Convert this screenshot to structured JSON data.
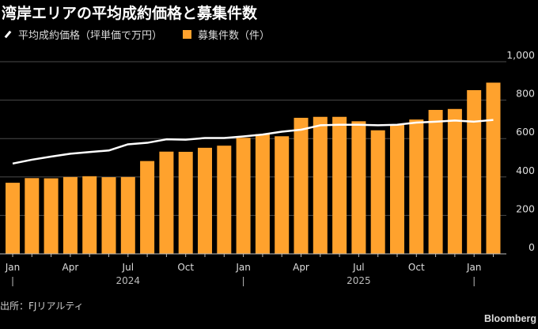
{
  "chart_data": {
    "type": "bar+line",
    "title": "湾岸エリアの平均成約価格と募集件数",
    "legend": [
      {
        "name": "平均成約価格（坪単価で万円）",
        "kind": "line",
        "color": "#ffffff"
      },
      {
        "name": "募集件数（件）",
        "kind": "bar",
        "color": "#ffa22d"
      }
    ],
    "legend_placement": "top-left",
    "months": [
      "2024-01",
      "2024-02",
      "2024-03",
      "2024-04",
      "2024-05",
      "2024-06",
      "2024-07",
      "2024-08",
      "2024-09",
      "2024-10",
      "2024-11",
      "2024-12",
      "2025-01",
      "2025-02",
      "2025-03",
      "2025-04",
      "2025-05",
      "2025-06",
      "2025-07",
      "2025-08",
      "2025-09",
      "2025-10",
      "2025-11",
      "2025-12",
      "2026-01",
      "2026-02"
    ],
    "series": [
      {
        "name": "募集件数（件）",
        "type": "bar",
        "values": [
          370,
          394,
          393,
          400,
          404,
          399,
          400,
          483,
          532,
          531,
          552,
          563,
          604,
          623,
          612,
          708,
          713,
          713,
          690,
          643,
          673,
          699,
          749,
          754,
          852,
          891
        ]
      },
      {
        "name": "平均成約価格（坪単価で万円）",
        "type": "line",
        "values": [
          470,
          490,
          506,
          521,
          530,
          538,
          570,
          578,
          596,
          594,
          603,
          603,
          611,
          621,
          636,
          646,
          669,
          672,
          672,
          669,
          672,
          683,
          688,
          694,
          688,
          697
        ]
      }
    ],
    "ylim": [
      0,
      1000
    ],
    "yticks": [
      {
        "v": 0,
        "label": "0"
      },
      {
        "v": 200,
        "label": "200"
      },
      {
        "v": 400,
        "label": "400"
      },
      {
        "v": 600,
        "label": "600"
      },
      {
        "v": 800,
        "label": "800"
      },
      {
        "v": 1000,
        "label": "1,000"
      }
    ],
    "xticks": [
      {
        "i": 0,
        "label": "Jan"
      },
      {
        "i": 3,
        "label": "Apr"
      },
      {
        "i": 6,
        "label": "Jul"
      },
      {
        "i": 9,
        "label": "Oct"
      },
      {
        "i": 12,
        "label": "Jan"
      },
      {
        "i": 15,
        "label": "Apr"
      },
      {
        "i": 18,
        "label": "Jul"
      },
      {
        "i": 21,
        "label": "Oct"
      },
      {
        "i": 24,
        "label": "Jan"
      }
    ],
    "year_labels": [
      {
        "i": 6,
        "label": "2024"
      },
      {
        "i": 18,
        "label": "2025"
      }
    ],
    "year_separators": [
      0,
      12,
      24
    ],
    "grid": true,
    "xlabel": "",
    "ylabel": ""
  },
  "source": "出所：FJリアルティ",
  "brand": "Bloomberg"
}
